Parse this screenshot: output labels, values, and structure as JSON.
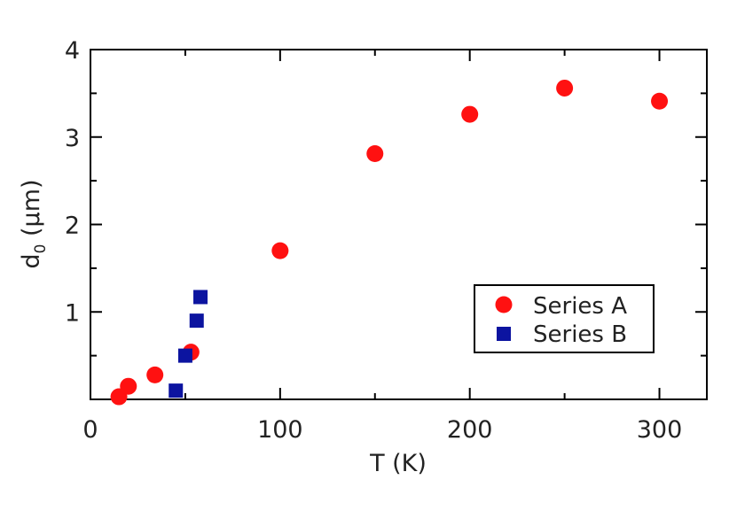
{
  "chart_data": {
    "type": "scatter",
    "title": "",
    "xlabel": "T (K)",
    "ylabel": {
      "main": "d",
      "subscript": "0",
      "unit": " (µm)"
    },
    "xlim": [
      0,
      325
    ],
    "ylim": [
      0,
      4
    ],
    "x_ticks": [
      0,
      100,
      200,
      300
    ],
    "x_tick_labels": [
      "0",
      "100",
      "200",
      "300"
    ],
    "x_minor_ticks": [
      50,
      150,
      250
    ],
    "y_ticks": [
      1,
      2,
      3,
      4
    ],
    "y_tick_labels": [
      "1",
      "2",
      "3",
      "4"
    ],
    "y_minor_ticks": [
      0.5,
      1.5,
      2.5,
      3.5
    ],
    "grid": false,
    "legend_position": "lower-right",
    "series": [
      {
        "name": "Series A",
        "marker": "circle",
        "color": "#ff1111",
        "points": [
          [
            15,
            0.03
          ],
          [
            20,
            0.15
          ],
          [
            34,
            0.28
          ],
          [
            53,
            0.54
          ],
          [
            100,
            1.7
          ],
          [
            150,
            2.81
          ],
          [
            200,
            3.26
          ],
          [
            250,
            3.56
          ],
          [
            300,
            3.41
          ]
        ]
      },
      {
        "name": "Series B",
        "marker": "square",
        "color": "#0c14a0",
        "points": [
          [
            45,
            0.1
          ],
          [
            50,
            0.5
          ],
          [
            56,
            0.9
          ],
          [
            58,
            1.17
          ]
        ]
      }
    ]
  }
}
